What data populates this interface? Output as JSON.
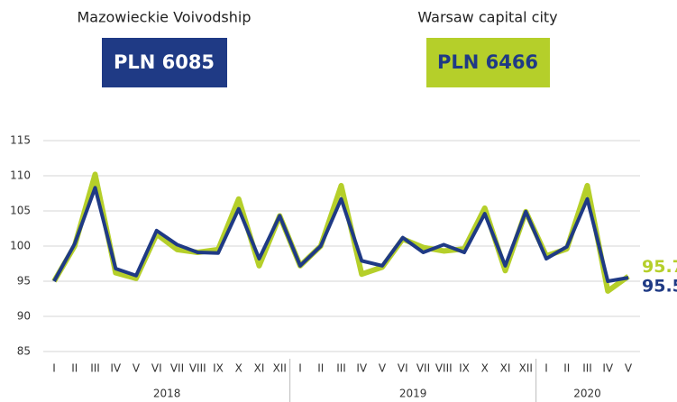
{
  "chart_data": {
    "type": "line",
    "categories": [
      "I",
      "II",
      "III",
      "IV",
      "V",
      "VI",
      "VII",
      "VIII",
      "IX",
      "X",
      "XI",
      "XII",
      "I",
      "II",
      "III",
      "IV",
      "V",
      "VI",
      "VII",
      "VIII",
      "IX",
      "X",
      "XI",
      "XII",
      "I",
      "II",
      "III",
      "IV",
      "V"
    ],
    "groups": [
      "2018",
      "2019",
      "2020"
    ],
    "series": [
      {
        "name": "Warsaw capital city",
        "headline": "PLN 6466",
        "color": "#b5cf2a",
        "values": [
          95,
          100,
          110.2,
          96.2,
          95.4,
          101.7,
          99.5,
          99.1,
          99.5,
          106.7,
          97.2,
          104.3,
          97.2,
          100,
          108.6,
          96,
          97,
          101,
          99.8,
          99.3,
          99.6,
          105.4,
          96.5,
          104.9,
          98.6,
          99.6,
          108.6,
          93.6,
          95.7
        ]
      },
      {
        "name": "Mazowieckie Voivodship",
        "headline": "PLN 6085",
        "color": "#1f3a85",
        "values": [
          95,
          100.3,
          108.3,
          96.8,
          95.8,
          102.2,
          100.2,
          99.1,
          99,
          105.3,
          98.2,
          104.3,
          97.2,
          100,
          106.7,
          97.9,
          97.2,
          101.2,
          99.1,
          100.2,
          99.1,
          104.6,
          97.2,
          104.9,
          98.2,
          99.9,
          106.7,
          95,
          95.5
        ]
      }
    ],
    "ylim": [
      83,
      117
    ],
    "yticks": [
      85,
      90,
      95,
      100,
      105,
      110,
      115
    ],
    "grid": true
  }
}
